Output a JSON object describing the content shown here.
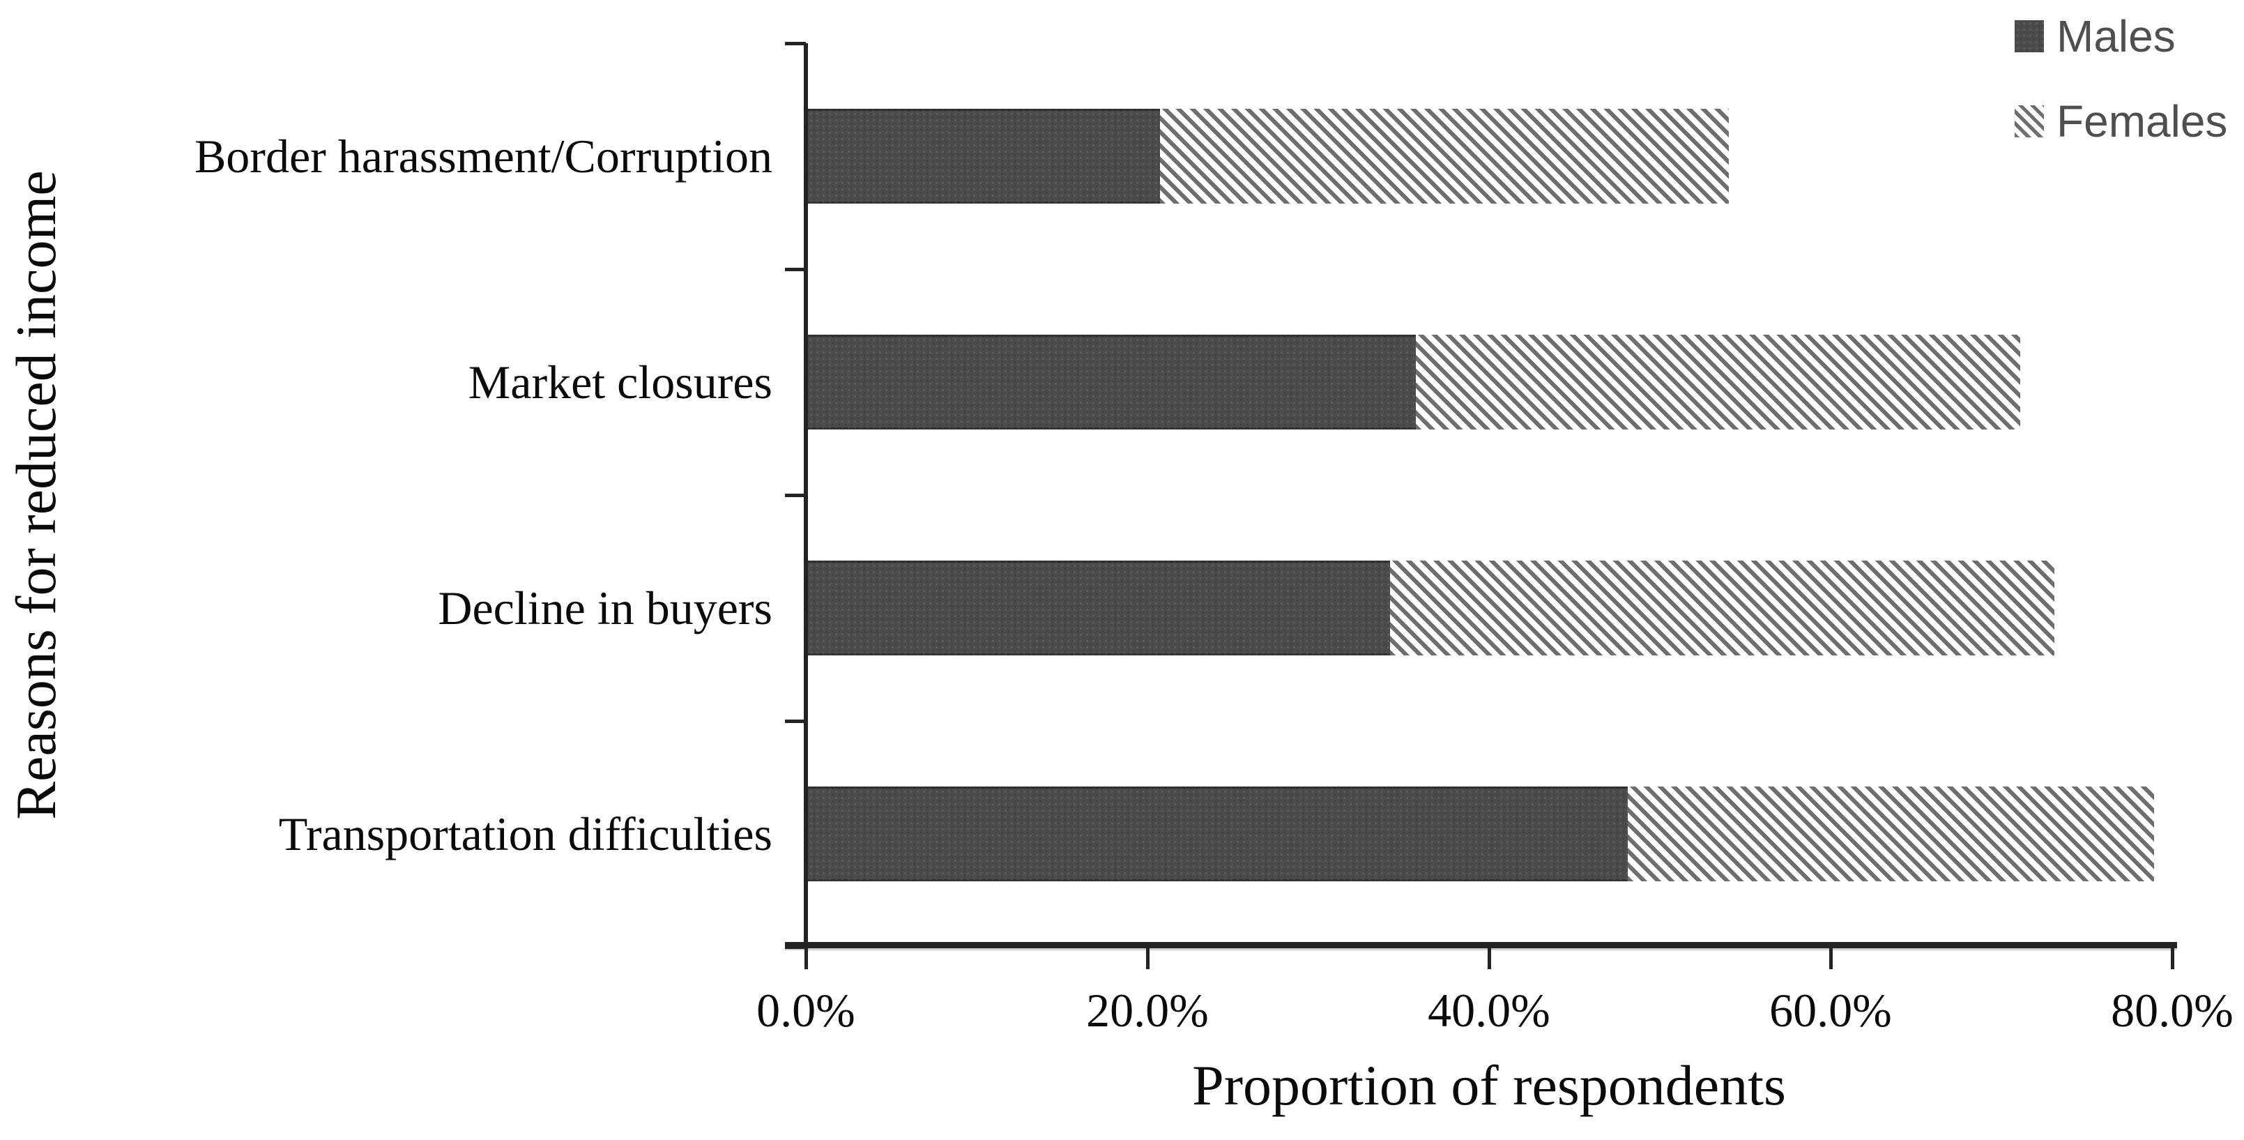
{
  "chart_data": {
    "type": "bar",
    "orientation": "horizontal",
    "stacked": true,
    "title": "",
    "categories": [
      "Border harassment/Corruption",
      "Market closures",
      "Decline in buyers",
      "Transportation difficulties"
    ],
    "series": [
      {
        "name": "Males",
        "values": [
          20.6,
          35.6,
          34.1,
          48.0
        ]
      },
      {
        "name": "Females",
        "values": [
          33.3,
          35.4,
          38.9,
          30.8
        ]
      }
    ],
    "stacked_totals": [
      53.9,
      71.0,
      73.0,
      78.8
    ],
    "xlabel": "Proportion of respondents",
    "ylabel": "Reasons for reduced income",
    "xlim": [
      0,
      80
    ],
    "xticks": [
      "0.0%",
      "20.0%",
      "40.0%",
      "60.0%",
      "80.0%"
    ],
    "xtick_values": [
      0,
      20,
      40,
      60,
      80
    ],
    "grid": false,
    "legend_position": "top-right"
  },
  "legend": {
    "items": [
      {
        "label": "Males",
        "swatch": "solid-dark-dotted"
      },
      {
        "label": "Females",
        "swatch": "diagonal-hatch"
      }
    ]
  },
  "colors": {
    "males_fill": "#4b4b4b",
    "females_hatch_line": "#6e6e6e",
    "axis": "#232323",
    "label_text": "#0a0a0a",
    "legend_text": "#4f4f4f",
    "background": "#ffffff"
  }
}
